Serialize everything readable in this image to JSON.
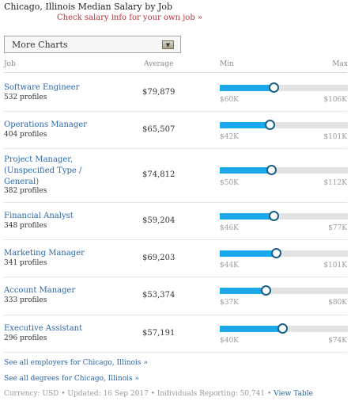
{
  "header": {
    "title": "Chicago, Illinois Median Salary by Job",
    "salary_link": "Check salary info for your own job »"
  },
  "dropdown": {
    "label": "More Charts",
    "icon": "dropdown-arrow-icon"
  },
  "columns": {
    "job": "Job",
    "average": "Average",
    "min": "Min",
    "max": "Max"
  },
  "colors": {
    "bar_fill": "#1aa9ec",
    "bar_track": "#e3e3e3",
    "link": "#2a66a8",
    "accent_link": "#b5343a"
  },
  "jobs": [
    {
      "title": "Software Engineer",
      "profiles": "532 profiles",
      "average": "$79,879",
      "min": "$60K",
      "max": "$106K",
      "level": 0.42
    },
    {
      "title": "Operations Manager",
      "profiles": "404 profiles",
      "average": "$65,507",
      "min": "$42K",
      "max": "$101K",
      "level": 0.39
    },
    {
      "title": "Project Manager, (Unspecified Type / General)",
      "profiles": "382 profiles",
      "average": "$74,812",
      "min": "$50K",
      "max": "$112K",
      "level": 0.4
    },
    {
      "title": "Financial Analyst",
      "profiles": "348 profiles",
      "average": "$59,204",
      "min": "$46K",
      "max": "$77K",
      "level": 0.42
    },
    {
      "title": "Marketing Manager",
      "profiles": "341 profiles",
      "average": "$69,203",
      "min": "$44K",
      "max": "$101K",
      "level": 0.44
    },
    {
      "title": "Account Manager",
      "profiles": "333 profiles",
      "average": "$53,374",
      "min": "$37K",
      "max": "$80K",
      "level": 0.36
    },
    {
      "title": "Executive Assistant",
      "profiles": "296 profiles",
      "average": "$57,191",
      "min": "$40K",
      "max": "$74K",
      "level": 0.49
    }
  ],
  "links": {
    "employers": "See all employers for Chicago, Illinois »",
    "degrees": "See all degrees for Chicago, Illinois »"
  },
  "footer": {
    "text": "Currency: USD • Updated: 16 Sep 2017 • Individuals Reporting: 50,741 •",
    "view_table": "View Table"
  }
}
